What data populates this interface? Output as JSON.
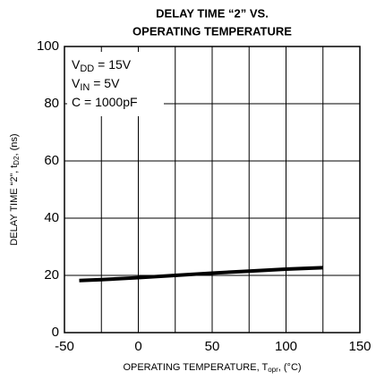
{
  "chart_data": {
    "type": "line",
    "title": [
      "DELAY TIME “2” VS.",
      "OPERATING TEMPERATURE"
    ],
    "x_label": [
      "OPERATING TEMPERATURE, T",
      "opr",
      ", (°C)"
    ],
    "y_label": [
      "DELAY TIME “2”, t",
      "D2",
      ", (ns)"
    ],
    "annotations": [
      [
        "V",
        "DD",
        " = 15V"
      ],
      [
        "V",
        "IN",
        " = 5V"
      ],
      [
        "C = 1000pF"
      ]
    ],
    "x": [
      -40,
      -25,
      0,
      25,
      50,
      75,
      100,
      125
    ],
    "series": [
      {
        "color": "#000000",
        "values": [
          18.2,
          18.5,
          19.2,
          20,
          20.8,
          21.5,
          22.2,
          22.7
        ]
      }
    ],
    "xlim": [
      -50,
      150
    ],
    "xticks": [
      -50,
      0,
      50,
      100,
      150
    ],
    "xminor": [
      -25,
      25,
      75,
      125
    ],
    "ylim": [
      0,
      100
    ],
    "yticks": [
      0,
      20,
      40,
      60,
      80,
      100
    ],
    "grid": true
  }
}
